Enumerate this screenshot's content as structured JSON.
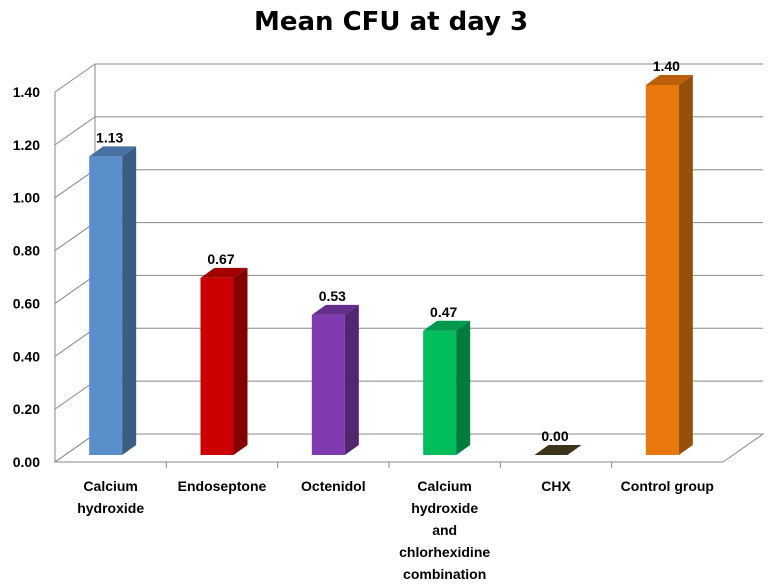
{
  "chart_data": {
    "type": "bar",
    "title": "Mean CFU at day 3",
    "xlabel": "",
    "ylabel": "",
    "ylim": [
      0,
      1.4
    ],
    "yticks": [
      "0.00",
      "0.20",
      "0.40",
      "0.60",
      "0.80",
      "1.00",
      "1.20",
      "1.40"
    ],
    "grid": true,
    "legend": "none",
    "categories": [
      [
        "Calcium",
        "hydroxide"
      ],
      [
        "Endoseptone"
      ],
      [
        "Octenidol"
      ],
      [
        "Calcium",
        "hydroxide",
        "and",
        "chlorhexidine",
        "combination"
      ],
      [
        "CHX"
      ],
      [
        "Control group"
      ]
    ],
    "values": [
      1.13,
      0.67,
      0.53,
      0.47,
      0.0,
      1.4
    ],
    "value_labels": [
      "1.13",
      "0.67",
      "0.53",
      "0.47",
      "0.00",
      "1.40"
    ],
    "colors": [
      "#5B8FCC",
      "#CC0000",
      "#7F3AAF",
      "#00BE5C",
      "#4A4020",
      "#E8780E"
    ]
  }
}
